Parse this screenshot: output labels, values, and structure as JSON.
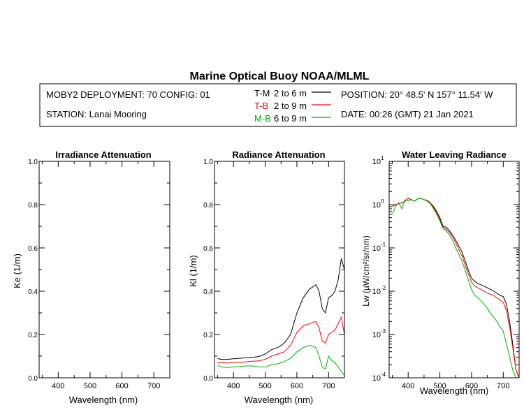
{
  "title": "Marine Optical Buoy NOAA/MLML",
  "header": {
    "deployment": "MOBY2 DEPLOYMENT: 70 CONFIG: 01",
    "station": "STATION: Lanai Mooring",
    "position": "POSITION: 20° 48.5' N   157° 11.54' W",
    "date": "DATE: 00:26 (GMT) 21 Jan 2021",
    "legend": [
      {
        "code": "T-M",
        "range": "2 to 6  m",
        "color": "#000000"
      },
      {
        "code": "T-B",
        "range": "2 to 9  m",
        "color": "#ff0000"
      },
      {
        "code": "M-B",
        "range": "6 to 9  m",
        "color": "#00b000"
      }
    ]
  },
  "chart_data": [
    {
      "type": "line",
      "title": "Irradiance Attenuation",
      "xlabel": "Wavelength (nm)",
      "ylabel": "Ke  (1/m)",
      "xlim": [
        340,
        750
      ],
      "ylim": [
        0,
        1
      ],
      "xticks": [
        "400",
        "500",
        "600",
        "700"
      ],
      "yticks": [
        "0.0",
        "0.2",
        "0.4",
        "0.6",
        "0.8",
        "1.0"
      ],
      "series": []
    },
    {
      "type": "line",
      "title": "Radiance Attenuation",
      "xlabel": "Wavelength (nm)",
      "ylabel": "Kl  (1/m)",
      "xlim": [
        340,
        750
      ],
      "ylim": [
        0,
        1
      ],
      "xticks": [
        "400",
        "500",
        "600",
        "700"
      ],
      "yticks": [
        "0.0",
        "0.2",
        "0.4",
        "0.6",
        "0.8",
        "1.0"
      ],
      "series": [
        {
          "name": "T-M",
          "color": "#000000",
          "x": [
            350,
            360,
            380,
            400,
            420,
            440,
            460,
            480,
            500,
            520,
            540,
            560,
            580,
            600,
            620,
            640,
            660,
            670,
            680,
            690,
            700,
            710,
            720,
            730,
            740,
            750
          ],
          "y": [
            0.09,
            0.085,
            0.085,
            0.088,
            0.09,
            0.093,
            0.095,
            0.098,
            0.11,
            0.13,
            0.14,
            0.16,
            0.2,
            0.3,
            0.37,
            0.41,
            0.43,
            0.4,
            0.32,
            0.3,
            0.37,
            0.38,
            0.4,
            0.45,
            0.55,
            0.5
          ]
        },
        {
          "name": "T-B",
          "color": "#ff0000",
          "x": [
            350,
            360,
            380,
            400,
            420,
            440,
            460,
            480,
            500,
            520,
            540,
            560,
            580,
            600,
            620,
            640,
            660,
            670,
            680,
            690,
            700,
            710,
            720,
            730,
            740,
            750
          ],
          "y": [
            0.07,
            0.07,
            0.068,
            0.07,
            0.072,
            0.074,
            0.076,
            0.078,
            0.085,
            0.1,
            0.11,
            0.12,
            0.15,
            0.21,
            0.24,
            0.25,
            0.26,
            0.23,
            0.17,
            0.16,
            0.2,
            0.21,
            0.22,
            0.25,
            0.28,
            0.2
          ]
        },
        {
          "name": "M-B",
          "color": "#00b000",
          "x": [
            350,
            360,
            380,
            400,
            420,
            440,
            460,
            480,
            500,
            520,
            540,
            560,
            580,
            600,
            620,
            640,
            660,
            670,
            680,
            690,
            700,
            710,
            720,
            730,
            740,
            750
          ],
          "y": [
            0.06,
            0.05,
            0.048,
            0.05,
            0.052,
            0.055,
            0.055,
            0.05,
            0.05,
            0.06,
            0.065,
            0.075,
            0.09,
            0.12,
            0.14,
            0.15,
            0.14,
            0.1,
            0.05,
            0.04,
            0.1,
            0.08,
            0.07,
            0.05,
            0.03,
            0.01
          ]
        }
      ]
    },
    {
      "type": "line",
      "title": "Water Leaving Radiance",
      "xlabel": "Wavelength (nm)",
      "ylabel": "Lw  (µW/cm²/sr/nm)",
      "xlim": [
        340,
        750
      ],
      "ylim": [
        0.0001,
        10
      ],
      "yscale": "log",
      "xticks": [
        "400",
        "500",
        "600",
        "700"
      ],
      "yticks": [
        "10^1",
        "10^0",
        "10^-1",
        "10^-2",
        "10^-3",
        "10^-4"
      ],
      "series": [
        {
          "name": "T-M",
          "color": "#000000",
          "x": [
            350,
            360,
            370,
            380,
            390,
            400,
            410,
            420,
            430,
            440,
            450,
            460,
            470,
            480,
            490,
            500,
            510,
            520,
            530,
            540,
            550,
            560,
            570,
            580,
            590,
            600,
            610,
            620,
            630,
            640,
            650,
            660,
            670,
            680,
            690,
            700,
            710,
            720,
            730,
            740,
            750
          ],
          "y": [
            0.9,
            1.0,
            1.05,
            1.1,
            1.2,
            1.4,
            1.3,
            1.2,
            1.35,
            1.4,
            1.3,
            1.25,
            1.1,
            0.9,
            0.7,
            0.5,
            0.32,
            0.3,
            0.25,
            0.2,
            0.15,
            0.11,
            0.08,
            0.05,
            0.03,
            0.02,
            0.017,
            0.015,
            0.014,
            0.013,
            0.012,
            0.011,
            0.01,
            0.009,
            0.008,
            0.0075,
            0.005,
            0.002,
            0.0006,
            0.00015,
            0.0001
          ]
        },
        {
          "name": "T-B",
          "color": "#ff0000",
          "x": [
            350,
            360,
            370,
            380,
            390,
            400,
            410,
            420,
            430,
            440,
            450,
            460,
            470,
            480,
            490,
            500,
            510,
            520,
            530,
            540,
            550,
            560,
            570,
            580,
            590,
            600,
            610,
            620,
            630,
            640,
            650,
            660,
            670,
            680,
            690,
            700,
            710,
            720,
            730,
            740,
            750
          ],
          "y": [
            0.9,
            1.0,
            1.05,
            1.1,
            1.2,
            1.4,
            1.3,
            1.2,
            1.35,
            1.4,
            1.3,
            1.25,
            1.1,
            0.85,
            0.65,
            0.45,
            0.3,
            0.27,
            0.23,
            0.18,
            0.13,
            0.09,
            0.065,
            0.04,
            0.025,
            0.016,
            0.013,
            0.012,
            0.011,
            0.01,
            0.009,
            0.0085,
            0.008,
            0.007,
            0.0062,
            0.0055,
            0.0035,
            0.0015,
            0.0005,
            0.00015,
            0.0001
          ]
        },
        {
          "name": "M-B",
          "color": "#00b000",
          "x": [
            350,
            360,
            370,
            380,
            390,
            400,
            410,
            420,
            430,
            440,
            450,
            460,
            470,
            480,
            490,
            500,
            510,
            520,
            530,
            540,
            550,
            560,
            570,
            580,
            590,
            600,
            610,
            620,
            630,
            640,
            650,
            660,
            670,
            680,
            690,
            700,
            710,
            720,
            730,
            740,
            750
          ],
          "y": [
            0.6,
            0.9,
            1.1,
            0.8,
            1.3,
            1.2,
            1.3,
            1.2,
            1.35,
            1.4,
            1.3,
            1.2,
            1.05,
            0.8,
            0.6,
            0.42,
            0.28,
            0.25,
            0.2,
            0.15,
            0.1,
            0.07,
            0.05,
            0.03,
            0.018,
            0.011,
            0.008,
            0.007,
            0.006,
            0.005,
            0.004,
            0.003,
            0.0025,
            0.002,
            0.0015,
            0.0012,
            0.0006,
            0.0003,
            0.00015,
            0.0001,
            0.0001
          ]
        }
      ]
    }
  ]
}
